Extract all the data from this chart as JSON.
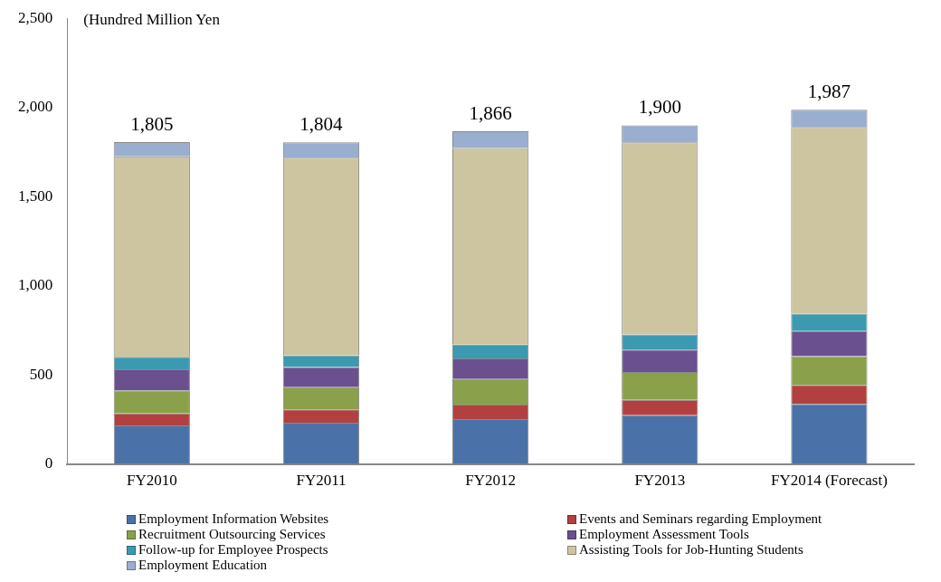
{
  "chart_data": {
    "type": "bar",
    "stacked": true,
    "ylabel": "(Hundred Million Yen",
    "categories": [
      "FY2010",
      "FY2011",
      "FY2012",
      "FY2013",
      "FY2014 (Forecast)"
    ],
    "series": [
      {
        "name": "Employment Information Websites",
        "color": "#4a72a8",
        "values": [
          216,
          231,
          252,
          274,
          337
        ]
      },
      {
        "name": "Events and Seminars regarding Employment",
        "color": "#b34040",
        "values": [
          68,
          75,
          81,
          86,
          107
        ]
      },
      {
        "name": "Recruitment Outsourcing Services",
        "color": "#8aa04a",
        "values": [
          129,
          125,
          143,
          156,
          161
        ]
      },
      {
        "name": "Employment Assessment Tools",
        "color": "#6b5090",
        "values": [
          118,
          113,
          116,
          125,
          140
        ]
      },
      {
        "name": "Follow-up for Employee Prospects",
        "color": "#3b9ab0",
        "values": [
          70,
          66,
          78,
          86,
          98
        ]
      },
      {
        "name": "Assisting Tools for Job-Hunting Students",
        "color": "#cdc5a0",
        "values": [
          1125,
          1108,
          1102,
          1077,
          1047
        ]
      },
      {
        "name": "Employment Education",
        "color": "#9aaed0",
        "values": [
          79,
          86,
          94,
          96,
          97
        ]
      }
    ],
    "totals": [
      "1,805",
      "1,804",
      "1,866",
      "1,900",
      "1,987"
    ],
    "ylim": [
      0,
      2500
    ],
    "yticks": [
      {
        "value": 0,
        "label": "0"
      },
      {
        "value": 500,
        "label": "500"
      },
      {
        "value": 1000,
        "label": "1,000"
      },
      {
        "value": 1500,
        "label": "1,500"
      },
      {
        "value": 2000,
        "label": "2,000"
      },
      {
        "value": 2500,
        "label": "2,500"
      }
    ],
    "grid": false,
    "legend": "bottom"
  }
}
